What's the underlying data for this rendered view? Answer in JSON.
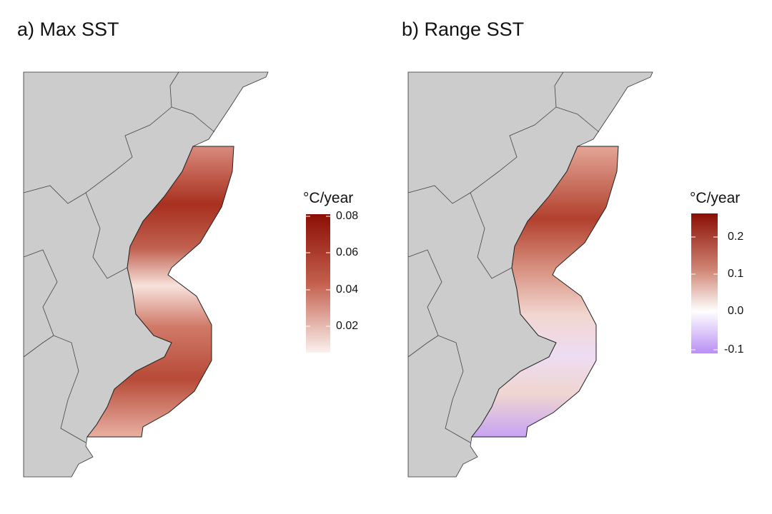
{
  "panels": [
    {
      "title": "a) Max SST",
      "legend": {
        "title": "°C/year",
        "ticks": [
          "0.08",
          "0.06",
          "0.04",
          "0.02"
        ],
        "colors": {
          "high": "#8b0e04",
          "low": "#fbeeea"
        }
      }
    },
    {
      "title": "b) Range SST",
      "legend": {
        "title": "°C/year",
        "ticks": [
          "0.2",
          "0.1",
          "0.0",
          "-0.1"
        ],
        "colors": {
          "high": "#8b0e04",
          "mid": "#ffffff",
          "low": "#b98ff5"
        }
      }
    }
  ],
  "colors": {
    "land": "#cccccc",
    "border": "#333333"
  }
}
